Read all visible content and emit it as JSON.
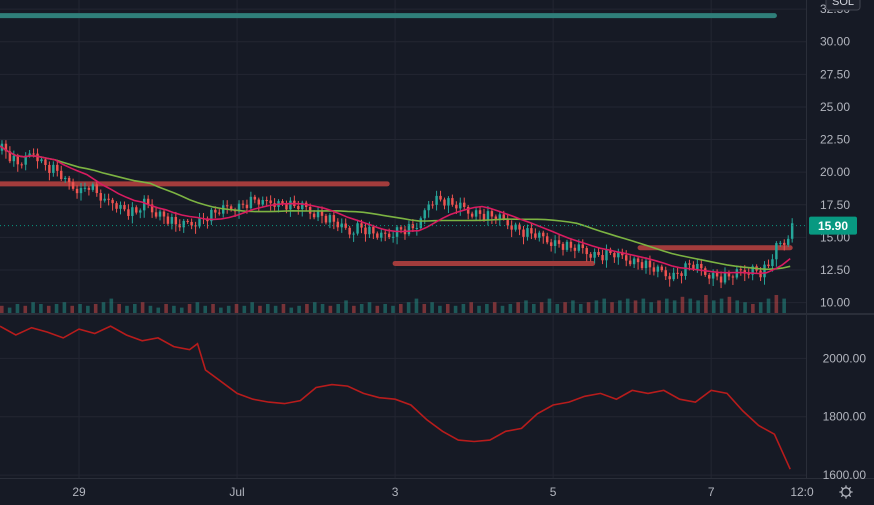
{
  "symbol_badge": "SOL",
  "colors": {
    "background": "#161a25",
    "grid": "#232632",
    "up": "#26a69a",
    "down": "#ef5350",
    "ma_fast": "#d81b60",
    "ma_slow": "#7cb342",
    "hline_teal": "#2f7f7a",
    "hline_red": "#a33c3c",
    "lower_line": "#b71c1c",
    "badge": "#089981"
  },
  "chart_data": [
    {
      "type": "candlestick",
      "panel": "price",
      "title": "",
      "y_ticks": [
        "32.50",
        "30.00",
        "27.50",
        "25.00",
        "22.50",
        "20.00",
        "17.50",
        "15.00",
        "12.50",
        "10.00"
      ],
      "ylim": [
        9.2,
        33.2
      ],
      "last_price": "15.90",
      "x_ticks": [
        {
          "label": "29",
          "day": 1.0
        },
        {
          "label": "Jul",
          "day": 3.0
        },
        {
          "label": "3",
          "day": 5.0
        },
        {
          "label": "5",
          "day": 7.0
        },
        {
          "label": "7",
          "day": 9.0
        },
        {
          "label": "12:0",
          "day": 10.2
        }
      ],
      "xlim": [
        0.0,
        10.2
      ],
      "close_series": {
        "day": [
          0.0,
          0.1,
          0.2,
          0.3,
          0.4,
          0.5,
          0.6,
          0.7,
          0.8,
          0.9,
          1.0,
          1.1,
          1.2,
          1.3,
          1.4,
          1.5,
          1.6,
          1.7,
          1.8,
          1.9,
          2.0,
          2.1,
          2.2,
          2.3,
          2.4,
          2.5,
          2.6,
          2.7,
          2.8,
          2.9,
          3.0,
          3.1,
          3.2,
          3.3,
          3.4,
          3.5,
          3.6,
          3.7,
          3.8,
          3.9,
          4.0,
          4.1,
          4.2,
          4.3,
          4.4,
          4.5,
          4.6,
          4.7,
          4.8,
          4.9,
          5.0,
          5.1,
          5.2,
          5.3,
          5.4,
          5.5,
          5.6,
          5.7,
          5.8,
          5.9,
          6.0,
          6.1,
          6.2,
          6.3,
          6.4,
          6.5,
          6.6,
          6.7,
          6.8,
          6.9,
          7.0,
          7.1,
          7.2,
          7.3,
          7.4,
          7.5,
          7.6,
          7.7,
          7.8,
          7.9,
          8.0,
          8.1,
          8.2,
          8.3,
          8.4,
          8.5,
          8.6,
          8.7,
          8.8,
          8.9,
          9.0,
          9.1,
          9.2,
          9.3,
          9.4,
          9.5,
          9.6,
          9.7,
          9.8,
          9.9,
          10.0
        ],
        "close": [
          22.0,
          21.2,
          20.6,
          20.9,
          21.6,
          20.8,
          20.3,
          20.1,
          19.2,
          18.9,
          18.6,
          19.0,
          18.4,
          17.6,
          17.8,
          17.3,
          17.0,
          16.9,
          17.6,
          17.1,
          16.8,
          16.4,
          16.0,
          15.9,
          16.1,
          16.3,
          16.6,
          16.9,
          17.1,
          17.3,
          17.4,
          17.6,
          17.9,
          17.5,
          17.8,
          17.6,
          17.5,
          17.4,
          17.3,
          17.0,
          16.8,
          16.5,
          16.2,
          15.7,
          15.4,
          15.9,
          15.6,
          15.3,
          15.0,
          15.2,
          15.6,
          15.6,
          15.7,
          16.1,
          17.7,
          18.0,
          17.8,
          17.5,
          17.3,
          17.0,
          16.9,
          16.7,
          16.6,
          16.4,
          16.1,
          15.8,
          15.4,
          15.3,
          15.0,
          14.8,
          14.6,
          14.4,
          14.2,
          14.1,
          13.9,
          13.7,
          13.6,
          13.8,
          13.5,
          13.4,
          13.2,
          13.0,
          12.7,
          12.4,
          12.2,
          12.1,
          12.4,
          12.9,
          12.6,
          12.3,
          12.1,
          11.9,
          12.0,
          12.2,
          12.4,
          12.6,
          12.3,
          12.8,
          14.2,
          14.6,
          15.9
        ]
      },
      "ma_fast_period": 8,
      "ma_slow_period": 20,
      "horizontal_levels": [
        {
          "color": "teal",
          "value": 32.0,
          "day_from": 0.0,
          "day_to": 9.8
        },
        {
          "color": "red",
          "value": 19.1,
          "day_from": 0.0,
          "day_to": 4.9
        },
        {
          "color": "red",
          "value": 13.0,
          "day_from": 5.0,
          "day_to": 7.5
        },
        {
          "color": "red",
          "value": 14.2,
          "day_from": 8.1,
          "day_to": 10.0
        }
      ]
    },
    {
      "type": "bar",
      "panel": "volume",
      "overlaid_on": "price",
      "values_relative": [
        0.4,
        0.3,
        0.5,
        0.4,
        0.6,
        0.5,
        0.4,
        0.5,
        0.6,
        0.4,
        0.5,
        0.4,
        0.5,
        0.6,
        0.8,
        0.5,
        0.4,
        0.5,
        0.6,
        0.4,
        0.3,
        0.5,
        0.4,
        0.3,
        0.5,
        0.6,
        0.4,
        0.5,
        0.3,
        0.4,
        0.5,
        0.4,
        0.6,
        0.4,
        0.5,
        0.4,
        0.5,
        0.3,
        0.4,
        0.5,
        0.6,
        0.5,
        0.4,
        0.5,
        0.7,
        0.4,
        0.5,
        0.6,
        0.4,
        0.5,
        0.4,
        0.5,
        0.6,
        0.8,
        0.5,
        0.6,
        0.4,
        0.5,
        0.4,
        0.5,
        0.6,
        0.4,
        0.5,
        0.6,
        0.4,
        0.5,
        0.6,
        0.7,
        0.5,
        0.6,
        0.8,
        0.5,
        0.6,
        0.7,
        0.5,
        0.6,
        0.7,
        0.8,
        0.6,
        0.7,
        0.8,
        0.7,
        0.8,
        0.6,
        0.7,
        0.8,
        0.7,
        0.9,
        0.8,
        0.7,
        1.0,
        0.7,
        0.8,
        0.9,
        0.7,
        0.6,
        0.5,
        0.6,
        0.8,
        1.0,
        0.8
      ]
    },
    {
      "type": "line",
      "panel": "lower",
      "y_ticks": [
        "2000.00",
        "1800.00",
        "1600.00"
      ],
      "ylim": [
        1590,
        2145
      ],
      "x": [
        0.0,
        0.2,
        0.4,
        0.6,
        0.8,
        1.0,
        1.2,
        1.4,
        1.6,
        1.8,
        2.0,
        2.2,
        2.4,
        2.5,
        2.6,
        2.8,
        3.0,
        3.2,
        3.4,
        3.6,
        3.8,
        4.0,
        4.2,
        4.4,
        4.6,
        4.8,
        5.0,
        5.2,
        5.4,
        5.6,
        5.8,
        6.0,
        6.2,
        6.4,
        6.6,
        6.8,
        7.0,
        7.2,
        7.4,
        7.6,
        7.8,
        8.0,
        8.2,
        8.4,
        8.6,
        8.8,
        9.0,
        9.2,
        9.4,
        9.6,
        9.8,
        10.0
      ],
      "y": [
        2110,
        2080,
        2105,
        2090,
        2070,
        2100,
        2085,
        2110,
        2080,
        2060,
        2070,
        2040,
        2030,
        2050,
        1960,
        1920,
        1880,
        1860,
        1850,
        1845,
        1855,
        1900,
        1910,
        1905,
        1880,
        1865,
        1860,
        1840,
        1790,
        1750,
        1720,
        1715,
        1720,
        1750,
        1760,
        1810,
        1840,
        1850,
        1870,
        1880,
        1860,
        1890,
        1880,
        1890,
        1860,
        1850,
        1890,
        1880,
        1820,
        1770,
        1740,
        1620
      ]
    }
  ]
}
